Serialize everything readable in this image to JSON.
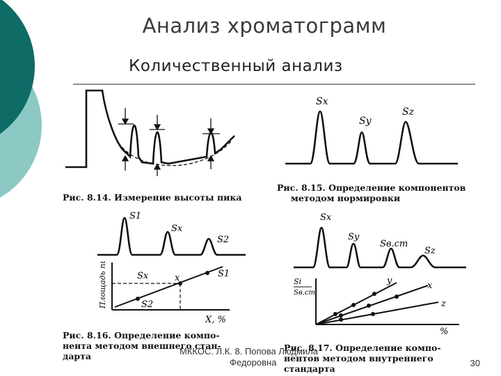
{
  "slide": {
    "title": "Анализ хроматограмм",
    "subtitle": "Количественный анализ",
    "footer_author": "МККОС. Л.К. 8. Попова Людмила",
    "footer_author_line2": "Федоровна",
    "page_number": "30"
  },
  "colors": {
    "teal_dark": "#0e6b66",
    "teal_light": "#8cc9c4",
    "ink": "#111111"
  },
  "figures": {
    "fig814": {
      "caption": "Рис. 8.14. Измерение высоты пика"
    },
    "fig815": {
      "caption_line1": "Рис. 8.15. Определение компонентов",
      "caption_line2": "методом нормировки",
      "peak_labels": [
        "Sx",
        "Sy",
        "Sz"
      ]
    },
    "fig816": {
      "caption_line1": "Рис. 8.16. Определение компо-",
      "caption_line2": "нента методом внешнего стан-",
      "caption_line3": "дарта",
      "peak_labels": [
        "S1",
        "Sx",
        "S2"
      ],
      "ylabel": "Площадь пика",
      "xlabel": "X, %",
      "plot_labels": {
        "sx": "Sx",
        "x": "x",
        "s1": "S1",
        "s2": "S2"
      }
    },
    "fig817": {
      "caption_line1": "Рис. 8.17. Определение компо-",
      "caption_line2": "нентов методом внутреннего",
      "caption_line3": "стандарта",
      "peak_labels": [
        "Sx",
        "Sy",
        "Sв.ст",
        "Sz"
      ],
      "ylabel_top": "Si",
      "ylabel_bottom": "Sв.ст",
      "xlabel": "%",
      "line_labels": [
        "y",
        "x",
        "z"
      ]
    }
  }
}
